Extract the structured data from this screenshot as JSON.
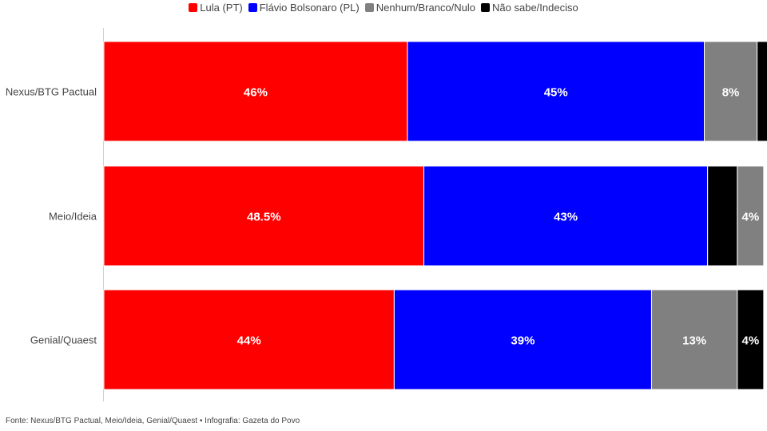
{
  "chart_data": {
    "type": "bar",
    "orientation": "horizontal",
    "stacked": true,
    "categories": [
      "Nexus/BTG Pactual",
      "Meio/Ideia",
      "Genial/Quaest"
    ],
    "series": [
      {
        "name": "Lula (PT)",
        "color": "#ff0000",
        "values": [
          46,
          48.5,
          44
        ],
        "labels": [
          "46%",
          "48.5%",
          "44%"
        ]
      },
      {
        "name": "Flávio Bolsonaro (PL)",
        "color": "#0000ff",
        "values": [
          45,
          43,
          39
        ],
        "labels": [
          "45%",
          "43%",
          "39%"
        ]
      },
      {
        "name": "Nenhum/Branco/Nulo",
        "color": "#808080",
        "values": [
          8,
          4,
          13
        ],
        "labels": [
          "8%",
          "4%",
          "13%"
        ]
      },
      {
        "name": "Não sabe/Indeciso",
        "color": "#000000",
        "values": [
          2,
          4.5,
          4
        ],
        "labels": [
          "",
          "",
          "4%"
        ]
      }
    ],
    "segment_order": [
      [
        0,
        1,
        2,
        3
      ],
      [
        0,
        1,
        3,
        2
      ],
      [
        0,
        1,
        2,
        3
      ]
    ],
    "xlim": [
      0,
      100.5
    ],
    "legend_position": "top",
    "grid": false
  },
  "footer": {
    "source": "Fonte: Nexus/BTG Pactual, Meio/Ideia, Genial/Quaest • Infografia: Gazeta do Povo"
  }
}
